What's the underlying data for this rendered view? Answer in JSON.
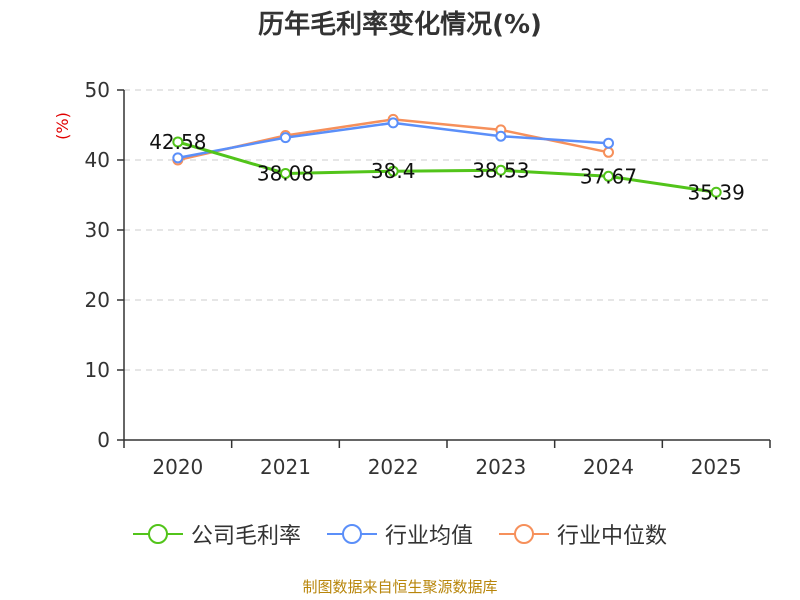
{
  "chart_data": {
    "type": "line",
    "title": "历年毛利率变化情况(%)",
    "ylabel": "(%)",
    "xlabel": "",
    "categories": [
      "2020",
      "2021",
      "2022",
      "2023",
      "2024",
      "2025"
    ],
    "ylim": [
      0,
      50
    ],
    "yticks": [
      0,
      10,
      20,
      30,
      40,
      50
    ],
    "grid": true,
    "legend_position": "bottom",
    "series": [
      {
        "name": "公司毛利率",
        "color": "#52c41a",
        "values": [
          42.58,
          38.08,
          38.4,
          38.53,
          37.67,
          35.39
        ],
        "labels": [
          "42.58",
          "38.08",
          "38.4",
          "38.53",
          "37.67",
          "35.39"
        ]
      },
      {
        "name": "行业均值",
        "color": "#5b8ff9",
        "values": [
          40.3,
          43.2,
          45.3,
          43.4,
          42.4,
          null
        ]
      },
      {
        "name": "行业中位数",
        "color": "#f6905b",
        "values": [
          40.0,
          43.5,
          45.8,
          44.3,
          41.1,
          null
        ]
      }
    ]
  },
  "footer": {
    "source": "制图数据来自恒生聚源数据库"
  }
}
